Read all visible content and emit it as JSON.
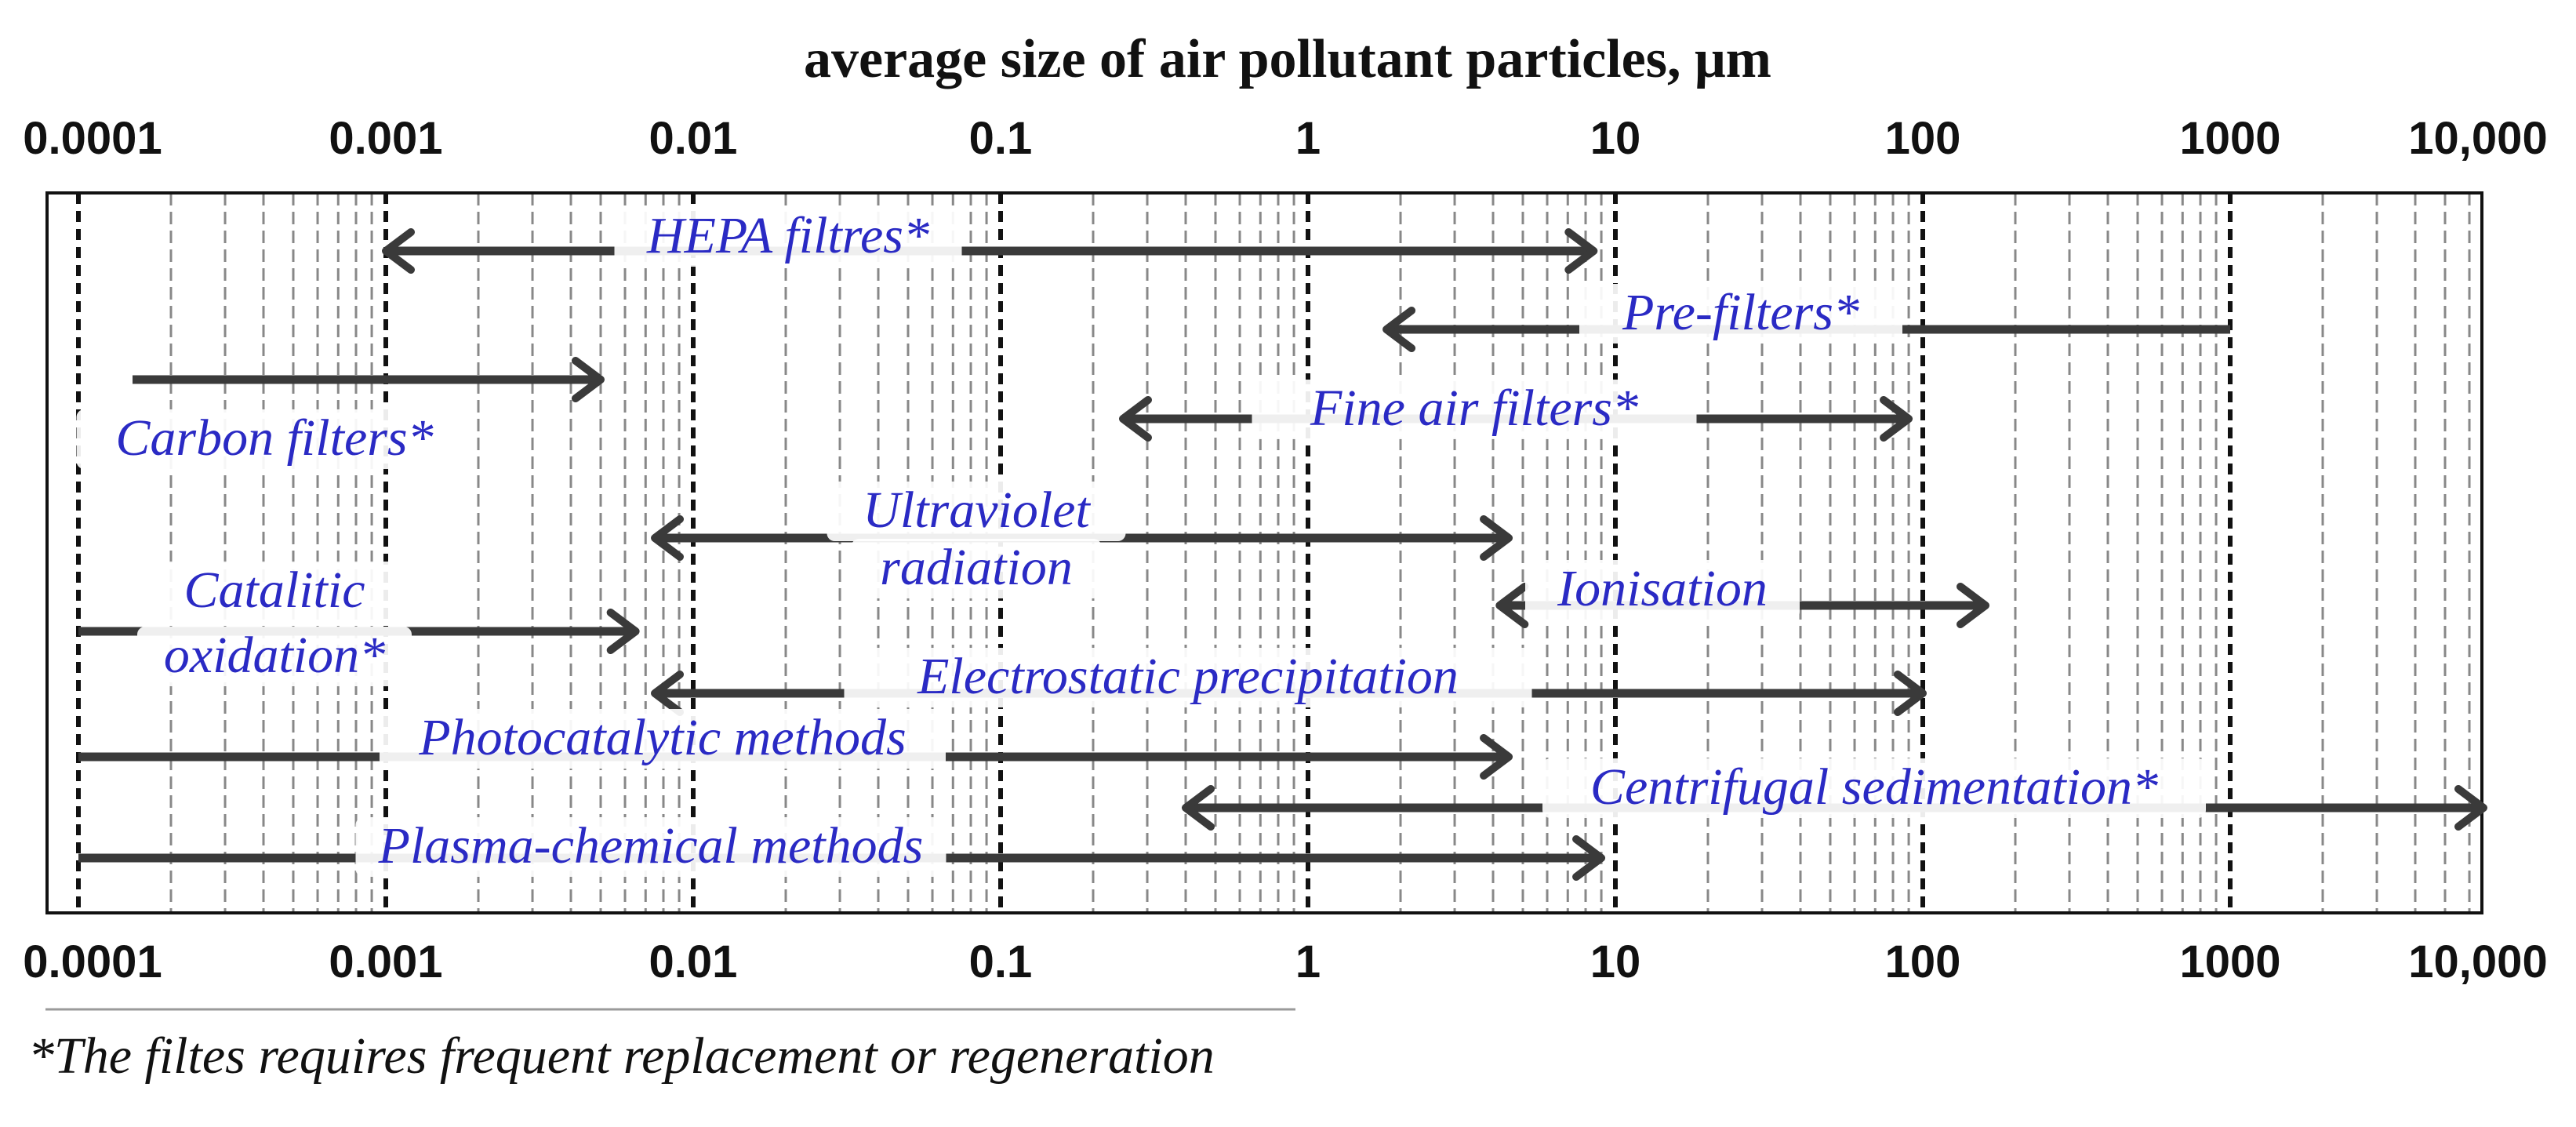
{
  "chart_data": {
    "type": "range",
    "title": "average size of air pollutant particles, μm",
    "xlabel": "average size of air pollutant particles, μm",
    "x_scale": "log",
    "xlim": [
      0.0001,
      10000
    ],
    "tick_labels": [
      "0.0001",
      "0.001",
      "0.01",
      "0.1",
      "1",
      "10",
      "100",
      "1000",
      "10,000"
    ],
    "grid": "dashed vertical lines at 1-9 multiples of each decade; decades as bold dashed lines",
    "series": [
      {
        "name": "HEPA filtres*",
        "x": [
          0.001,
          8.5
        ],
        "left_arrow": true,
        "right_arrow": true
      },
      {
        "name": "Pre-filters*",
        "x": [
          1.8,
          1000
        ],
        "left_arrow": true,
        "right_arrow": false
      },
      {
        "name": "Carbon filters*",
        "x": [
          0.00015,
          0.005
        ],
        "left_arrow": false,
        "right_arrow": true
      },
      {
        "name": "Fine air filters*",
        "x": [
          0.25,
          90
        ],
        "left_arrow": true,
        "right_arrow": true
      },
      {
        "name": "Ultraviolet radiation",
        "x": [
          0.0075,
          4.5
        ],
        "left_arrow": true,
        "right_arrow": true
      },
      {
        "name": "Ionisation",
        "x": [
          4.2,
          160
        ],
        "left_arrow": true,
        "right_arrow": true
      },
      {
        "name": "Catalitic oxidation*",
        "x": [
          0.0001,
          0.0065
        ],
        "left_arrow": false,
        "right_arrow": true
      },
      {
        "name": "Electrostatic precipitation",
        "x": [
          0.0075,
          100
        ],
        "left_arrow": true,
        "right_arrow": true
      },
      {
        "name": "Photocatalytic methods",
        "x": [
          0.0001,
          4.5
        ],
        "left_arrow": false,
        "right_arrow": true
      },
      {
        "name": "Centrifugal sedimentation*",
        "x": [
          0.4,
          10000
        ],
        "left_arrow": true,
        "right_arrow": true
      },
      {
        "name": "Plasma-chemical methods",
        "x": [
          0.0001,
          9
        ],
        "left_arrow": false,
        "right_arrow": true
      }
    ],
    "footnote": "*The filtes requires frequent replacement or regeneration"
  },
  "colors": {
    "method_label": "#2a2ac4",
    "arrow": "#3a3a3a",
    "grid_minor": "#888888",
    "grid_major": "#111111",
    "frame": "#111111"
  }
}
